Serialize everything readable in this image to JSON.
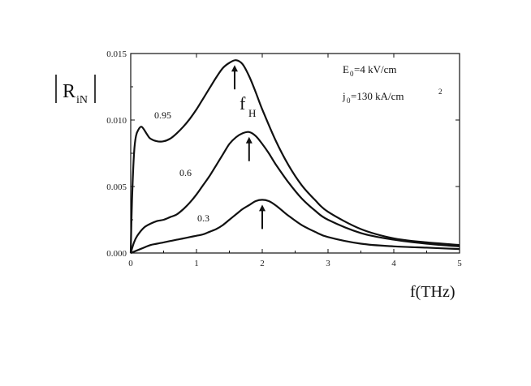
{
  "chart_data": {
    "type": "line",
    "xlabel": "f(THz)",
    "ylabel": {
      "main": "R",
      "sub": "iN"
    },
    "xlim": [
      0,
      5
    ],
    "ylim": [
      0,
      0.015
    ],
    "x_ticks": [
      0,
      1,
      2,
      3,
      4,
      5
    ],
    "x_tick_labels": [
      "0",
      "1",
      "2",
      "3",
      "4",
      "5"
    ],
    "y_ticks": [
      0,
      0.005,
      0.01,
      0.015
    ],
    "y_tick_labels": [
      "0.000",
      "0.005",
      "0.010",
      "0.015"
    ],
    "grid": false,
    "annotations": {
      "field": {
        "main": "E",
        "sub": "0",
        "rest": "=4 kV/cm"
      },
      "current": {
        "main": "j",
        "sub": "0",
        "rest": "=130 kA/cm",
        "sup": "2"
      },
      "fh": {
        "main": "f",
        "sub": "H"
      }
    },
    "series": [
      {
        "name": "0.95",
        "peak_x": 1.58,
        "x": [
          0,
          0.02,
          0.05,
          0.08,
          0.12,
          0.16,
          0.2,
          0.25,
          0.3,
          0.4,
          0.5,
          0.6,
          0.7,
          0.8,
          0.9,
          1.0,
          1.1,
          1.2,
          1.3,
          1.4,
          1.5,
          1.6,
          1.7,
          1.8,
          1.9,
          2.0,
          2.2,
          2.4,
          2.6,
          2.8,
          3.0,
          3.5,
          4.0,
          4.5,
          5.0
        ],
        "y": [
          0,
          0.004,
          0.0075,
          0.0088,
          0.0093,
          0.0095,
          0.0093,
          0.0089,
          0.0086,
          0.0084,
          0.0084,
          0.0086,
          0.009,
          0.0095,
          0.0101,
          0.0108,
          0.0116,
          0.0124,
          0.0132,
          0.0139,
          0.0143,
          0.0145,
          0.0142,
          0.0133,
          0.0121,
          0.0108,
          0.0085,
          0.0066,
          0.0051,
          0.004,
          0.0031,
          0.0018,
          0.0011,
          0.0008,
          0.0006
        ]
      },
      {
        "name": "0.6",
        "peak_x": 1.8,
        "x": [
          0,
          0.05,
          0.1,
          0.2,
          0.3,
          0.4,
          0.5,
          0.6,
          0.7,
          0.8,
          0.9,
          1.0,
          1.1,
          1.2,
          1.3,
          1.4,
          1.5,
          1.6,
          1.7,
          1.8,
          1.9,
          2.0,
          2.1,
          2.2,
          2.4,
          2.6,
          2.8,
          3.0,
          3.5,
          4.0,
          4.5,
          5.0
        ],
        "y": [
          0,
          0.0008,
          0.0013,
          0.0019,
          0.0022,
          0.0024,
          0.0025,
          0.0027,
          0.0029,
          0.0033,
          0.0038,
          0.0044,
          0.0051,
          0.0058,
          0.0066,
          0.0074,
          0.0082,
          0.0087,
          0.009,
          0.0091,
          0.0088,
          0.0082,
          0.0075,
          0.0067,
          0.0053,
          0.0041,
          0.0032,
          0.0025,
          0.0015,
          0.001,
          0.0007,
          0.0005
        ]
      },
      {
        "name": "0.3",
        "peak_x": 2.0,
        "x": [
          0,
          0.1,
          0.2,
          0.3,
          0.4,
          0.5,
          0.6,
          0.7,
          0.8,
          0.9,
          1.0,
          1.1,
          1.2,
          1.3,
          1.4,
          1.5,
          1.6,
          1.7,
          1.8,
          1.9,
          2.0,
          2.1,
          2.2,
          2.3,
          2.4,
          2.6,
          2.8,
          3.0,
          3.5,
          4.0,
          4.5,
          5.0
        ],
        "y": [
          0,
          0.0002,
          0.0004,
          0.0006,
          0.0007,
          0.0008,
          0.0009,
          0.001,
          0.0011,
          0.0012,
          0.0013,
          0.0014,
          0.0016,
          0.0018,
          0.0021,
          0.0025,
          0.0029,
          0.0033,
          0.0036,
          0.0039,
          0.004,
          0.0039,
          0.0036,
          0.0032,
          0.0028,
          0.0021,
          0.0016,
          0.0012,
          0.0007,
          0.0005,
          0.0004,
          0.0003
        ]
      }
    ]
  }
}
